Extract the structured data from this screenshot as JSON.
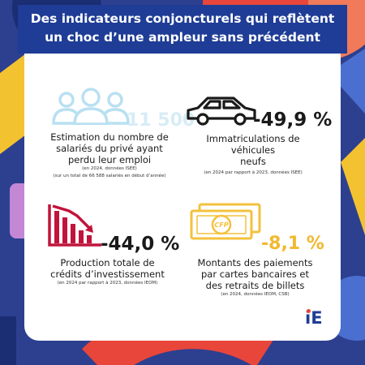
{
  "title": {
    "line1": "Des indicateurs conjoncturels qui reflètent",
    "line2": "un choc d’une ampleur sans précédent"
  },
  "employment": {
    "icon": "people-icon",
    "value": "11 500",
    "desc1": "Estimation du nombre de",
    "desc2": "salariés du privé ayant",
    "desc3": "perdu leur emploi",
    "note1": "(en 2024, données ISEE)",
    "note2": "(sur un total de 66 588 salariés en début d’année)"
  },
  "cars": {
    "icon": "car-icon",
    "value": "-49,9 %",
    "desc1": "Immatriculations de véhicules",
    "desc2": "neufs",
    "note1": "(en 2024 par rapport à 2023,  données ISEE)"
  },
  "credit": {
    "icon": "declining-chart-icon",
    "value": "-44,0 %",
    "desc1": "Production totale de",
    "desc2": "crédits d’investissement",
    "note1": "(en 2024 par rapport à 2023, données IEOM)"
  },
  "payments": {
    "icon": "banknote-icon",
    "banknote_label": "CFP",
    "value": "-8,1 %",
    "desc1": "Montants des paiements",
    "desc2": "par cartes bancaires et",
    "desc3": "des retraits de billets",
    "note1": "(en 2024, données IEOM, CSB)"
  },
  "logo": {
    "text": "iE"
  },
  "colors": {
    "background": "#2d3f8f",
    "title_bar": "#1f3d96",
    "people_icon": "#b9e0f2",
    "people_value": "#d7ecf6",
    "car_icon": "#1a1a1a",
    "chart_icon": "#c0143c",
    "banknote_icon": "#f3c13c",
    "payments_value": "#f2b830",
    "logo_accent": "#e8463a"
  }
}
